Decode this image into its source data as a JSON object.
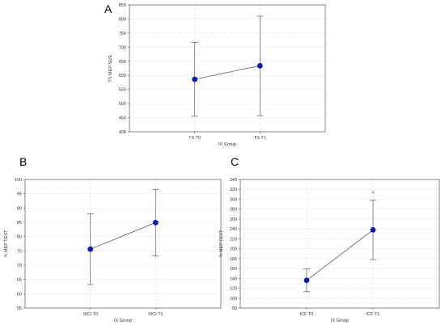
{
  "chart_data": [
    {
      "type": "line",
      "panel_label": "A",
      "categories": [
        "TS T0",
        "TS T1"
      ],
      "means": [
        586,
        634
      ],
      "error_low": [
        455,
        457
      ],
      "error_high": [
        717,
        810
      ],
      "xlabel": "IX Group",
      "ylabel": "TS MEP SIZE",
      "ylim": [
        400,
        850
      ],
      "yticks": [
        400,
        450,
        500,
        550,
        600,
        650,
        700,
        750,
        800,
        850
      ],
      "grid": true,
      "marker_color": "#0a1aa8",
      "line_color": "#6b6b80",
      "significance": ""
    },
    {
      "type": "line",
      "panel_label": "B",
      "categories": [
        "SICI T0",
        "SICI T1"
      ],
      "means": [
        75.6,
        84.9
      ],
      "error_low": [
        63.2,
        73.2
      ],
      "error_high": [
        88.0,
        96.5
      ],
      "xlabel": "IX Group",
      "ylabel": "% MEP TEST",
      "ylim": [
        55,
        100
      ],
      "yticks": [
        55,
        60,
        65,
        70,
        75,
        80,
        85,
        90,
        95,
        100
      ],
      "grid": true,
      "marker_color": "#0a1aa8",
      "line_color": "#6b6b80",
      "significance": ""
    },
    {
      "type": "line",
      "panel_label": "C",
      "categories": [
        "ICF T0",
        "ICF T1"
      ],
      "means": [
        136,
        238
      ],
      "error_low": [
        113,
        178
      ],
      "error_high": [
        159,
        298
      ],
      "xlabel": "IX Group",
      "ylabel": "% MEP TEST",
      "ylim": [
        80,
        340
      ],
      "yticks": [
        80,
        100,
        120,
        140,
        160,
        180,
        200,
        220,
        240,
        260,
        280,
        300,
        320,
        340
      ],
      "grid": true,
      "marker_color": "#0a1aa8",
      "line_color": "#6b6b80",
      "significance": "*"
    }
  ]
}
